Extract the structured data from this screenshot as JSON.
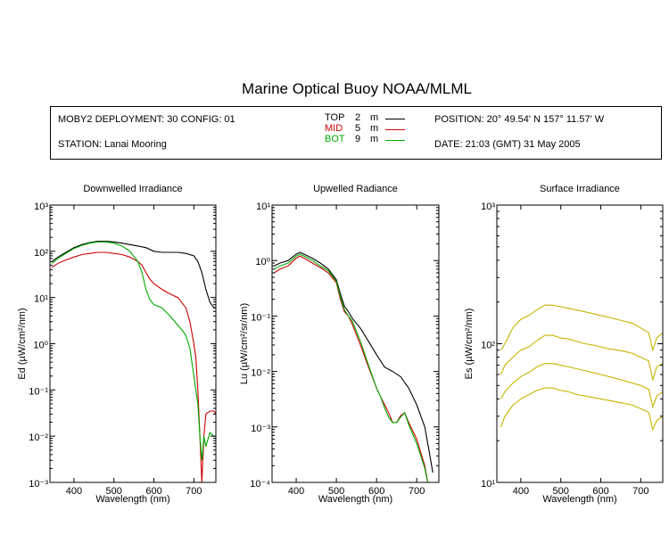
{
  "title": "Marine Optical Buoy NOAA/MLML",
  "info": {
    "deployment": "MOBY2 DEPLOYMENT: 30 CONFIG: 01",
    "station": "STATION: Lanai Mooring",
    "position": "POSITION: 20° 49.54' N   157° 11.57' W",
    "date": "DATE: 21:03 (GMT) 31 May 2005"
  },
  "legend": [
    {
      "name": "TOP",
      "depth": "2",
      "unit": "m",
      "color": "#000000"
    },
    {
      "name": "MID",
      "depth": "5",
      "unit": "m",
      "color": "#cc0000"
    },
    {
      "name": "BOT",
      "depth": "9",
      "unit": "m",
      "color": "#00aa00"
    }
  ],
  "chart_data": [
    {
      "type": "line",
      "title": "Downwelled Irradiance",
      "xlabel": "Wavelength (nm)",
      "ylabel": "Ed  (µW/cm²/nm)",
      "xlim": [
        340,
        755
      ],
      "ylim": [
        0.001,
        1000
      ],
      "yscale": "log",
      "xticks": [
        400,
        500,
        600,
        700
      ],
      "ytick_exponents": [
        -3,
        -2,
        -1,
        0,
        1,
        2,
        3
      ],
      "series": [
        {
          "name": "TOP",
          "color": "#000000",
          "x": [
            345,
            360,
            380,
            400,
            420,
            440,
            460,
            480,
            500,
            520,
            540,
            560,
            580,
            600,
            620,
            640,
            660,
            680,
            700,
            710,
            720,
            730,
            740,
            750,
            755
          ],
          "y": [
            60,
            75,
            95,
            120,
            140,
            155,
            165,
            165,
            160,
            150,
            140,
            130,
            120,
            100,
            95,
            95,
            95,
            90,
            80,
            60,
            35,
            15,
            8,
            6,
            6
          ]
        },
        {
          "name": "MID",
          "color": "#cc0000",
          "x": [
            345,
            360,
            380,
            400,
            420,
            440,
            460,
            480,
            500,
            520,
            540,
            560,
            570,
            580,
            590,
            600,
            620,
            640,
            660,
            680,
            690,
            700,
            705,
            710,
            715,
            720,
            725,
            730,
            740,
            750,
            755
          ],
          "y": [
            45,
            55,
            65,
            75,
            85,
            90,
            95,
            95,
            90,
            85,
            75,
            60,
            50,
            35,
            25,
            20,
            15,
            12,
            10,
            6,
            3,
            1,
            0.5,
            0.1,
            0.01,
            0.001,
            0.01,
            0.03,
            0.035,
            0.035,
            0.03
          ]
        },
        {
          "name": "BOT",
          "color": "#00aa00",
          "x": [
            345,
            360,
            380,
            400,
            420,
            440,
            460,
            480,
            500,
            520,
            540,
            560,
            570,
            580,
            590,
            600,
            620,
            640,
            660,
            670,
            680,
            690,
            700,
            710,
            715,
            720,
            725,
            730,
            740,
            750,
            755
          ],
          "y": [
            55,
            70,
            90,
            115,
            135,
            150,
            160,
            160,
            150,
            130,
            100,
            60,
            35,
            15,
            9,
            7,
            6,
            4,
            2.5,
            2,
            1.5,
            0.8,
            0.2,
            0.05,
            0.01,
            0.003,
            0.01,
            0.006,
            0.012,
            0.01,
            0.01
          ]
        }
      ]
    },
    {
      "type": "line",
      "title": "Upwelled Radiance",
      "xlabel": "Wavelength (nm)",
      "ylabel": "Lu  (µW/cm²/sr/nm)",
      "xlim": [
        340,
        755
      ],
      "ylim": [
        0.0001,
        10
      ],
      "yscale": "log",
      "xticks": [
        400,
        500,
        600,
        700
      ],
      "ytick_exponents": [
        -4,
        -3,
        -2,
        -1,
        0,
        1
      ],
      "series": [
        {
          "name": "TOP",
          "color": "#000000",
          "x": [
            345,
            360,
            380,
            400,
            410,
            420,
            440,
            460,
            480,
            500,
            510,
            520,
            530,
            540,
            560,
            580,
            600,
            620,
            640,
            660,
            680,
            700,
            720,
            730,
            740
          ],
          "y": [
            0.8,
            0.9,
            1.0,
            1.3,
            1.4,
            1.3,
            1.1,
            0.9,
            0.7,
            0.45,
            0.25,
            0.15,
            0.12,
            0.09,
            0.06,
            0.035,
            0.02,
            0.012,
            0.01,
            0.008,
            0.005,
            0.0025,
            0.001,
            0.0004,
            0.00015
          ]
        },
        {
          "name": "MID",
          "color": "#cc0000",
          "x": [
            345,
            360,
            380,
            400,
            410,
            420,
            440,
            460,
            480,
            500,
            510,
            520,
            530,
            540,
            560,
            580,
            600,
            610,
            620,
            630,
            640,
            650,
            660,
            670,
            680,
            700,
            720,
            730
          ],
          "y": [
            0.6,
            0.7,
            0.8,
            1.1,
            1.2,
            1.1,
            0.9,
            0.75,
            0.6,
            0.4,
            0.2,
            0.12,
            0.1,
            0.07,
            0.03,
            0.012,
            0.005,
            0.0035,
            0.0025,
            0.0018,
            0.0012,
            0.0012,
            0.0016,
            0.0018,
            0.0012,
            0.0006,
            0.0002,
            8e-05
          ]
        },
        {
          "name": "BOT",
          "color": "#00aa00",
          "x": [
            345,
            360,
            380,
            400,
            410,
            420,
            440,
            460,
            480,
            500,
            510,
            520,
            530,
            540,
            560,
            580,
            600,
            610,
            620,
            630,
            640,
            650,
            660,
            670,
            680,
            700,
            720,
            730
          ],
          "y": [
            0.7,
            0.8,
            0.9,
            1.2,
            1.3,
            1.2,
            1.0,
            0.8,
            0.65,
            0.42,
            0.22,
            0.13,
            0.1,
            0.08,
            0.035,
            0.013,
            0.005,
            0.0035,
            0.0022,
            0.0015,
            0.0012,
            0.0012,
            0.0015,
            0.0018,
            0.0011,
            0.0005,
            0.00018,
            8e-05
          ]
        }
      ]
    },
    {
      "type": "line",
      "title": "Surface Irradiance",
      "xlabel": "Wavelength (nm)",
      "ylabel": "Es  (µW/cm²/nm)",
      "xlim": [
        340,
        755
      ],
      "ylim": [
        10,
        1000
      ],
      "yscale": "log",
      "xticks": [
        400,
        500,
        600,
        700
      ],
      "ytick_exponents": [
        1,
        2,
        3
      ],
      "series": [
        {
          "name": "",
          "color": "#c8b400",
          "x": [
            350,
            360,
            380,
            400,
            420,
            440,
            460,
            480,
            500,
            520,
            540,
            560,
            580,
            600,
            620,
            640,
            660,
            680,
            700,
            720,
            730,
            740,
            755
          ],
          "y": [
            90,
            100,
            130,
            150,
            160,
            175,
            190,
            190,
            185,
            180,
            175,
            170,
            165,
            160,
            155,
            150,
            145,
            140,
            130,
            120,
            90,
            110,
            120
          ]
        },
        {
          "name": "",
          "color": "#c8b400",
          "x": [
            350,
            360,
            380,
            400,
            420,
            440,
            460,
            480,
            500,
            520,
            540,
            560,
            580,
            600,
            620,
            640,
            660,
            680,
            700,
            720,
            730,
            740,
            755
          ],
          "y": [
            60,
            70,
            80,
            90,
            95,
            105,
            115,
            115,
            110,
            108,
            104,
            100,
            98,
            95,
            92,
            90,
            88,
            85,
            80,
            75,
            55,
            68,
            72
          ]
        },
        {
          "name": "",
          "color": "#c8b400",
          "x": [
            350,
            360,
            380,
            400,
            420,
            440,
            460,
            480,
            500,
            520,
            540,
            560,
            580,
            600,
            620,
            640,
            660,
            680,
            700,
            720,
            730,
            740,
            755
          ],
          "y": [
            40,
            45,
            52,
            58,
            62,
            68,
            72,
            72,
            70,
            68,
            66,
            64,
            62,
            60,
            58,
            56,
            54,
            52,
            50,
            47,
            35,
            42,
            45
          ]
        },
        {
          "name": "",
          "color": "#c8b400",
          "x": [
            350,
            360,
            380,
            400,
            420,
            440,
            460,
            480,
            500,
            520,
            540,
            560,
            580,
            600,
            620,
            640,
            660,
            680,
            700,
            720,
            730,
            740,
            755
          ],
          "y": [
            25,
            30,
            36,
            40,
            43,
            46,
            48,
            48,
            46,
            45,
            43,
            42,
            41,
            40,
            39,
            38,
            37,
            36,
            34,
            32,
            24,
            28,
            30
          ]
        }
      ]
    }
  ]
}
